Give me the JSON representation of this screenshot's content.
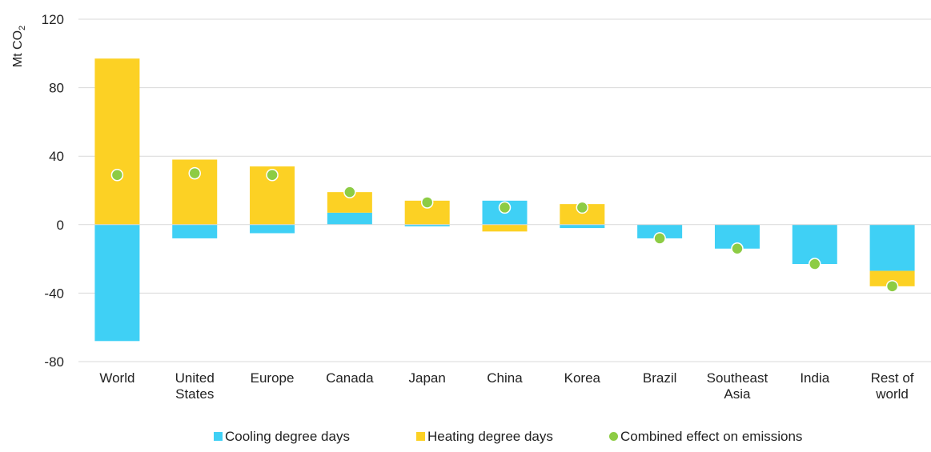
{
  "chart_data": {
    "type": "bar",
    "stacked": true,
    "ylabel": "Mt CO",
    "ylabel_subscript": "2",
    "ylim": [
      -80,
      120
    ],
    "yticks": [
      -80,
      -40,
      0,
      40,
      80,
      120
    ],
    "grid": true,
    "legend_position": "bottom",
    "categories": [
      [
        "World"
      ],
      [
        "United",
        "States"
      ],
      [
        "Europe"
      ],
      [
        "Canada"
      ],
      [
        "Japan"
      ],
      [
        "China"
      ],
      [
        "Korea"
      ],
      [
        "Brazil"
      ],
      [
        "Southeast",
        "Asia"
      ],
      [
        "India"
      ],
      [
        "Rest of",
        "world"
      ]
    ],
    "series": [
      {
        "name": "Cooling degree days",
        "kind": "bar",
        "color": "#3fd0f5",
        "values": [
          -68,
          -8,
          -5,
          7,
          -1,
          14,
          -2,
          -8,
          -14,
          -23,
          -27
        ]
      },
      {
        "name": "Heating degree days",
        "kind": "bar",
        "color": "#fcd124",
        "values": [
          97,
          38,
          34,
          12,
          14,
          -4,
          12,
          0,
          0,
          0,
          -9
        ]
      },
      {
        "name": "Combined effect on emissions",
        "kind": "point",
        "color": "#8dcc44",
        "values": [
          29,
          30,
          29,
          19,
          13,
          10,
          10,
          -8,
          -14,
          -23,
          -36
        ]
      }
    ]
  }
}
